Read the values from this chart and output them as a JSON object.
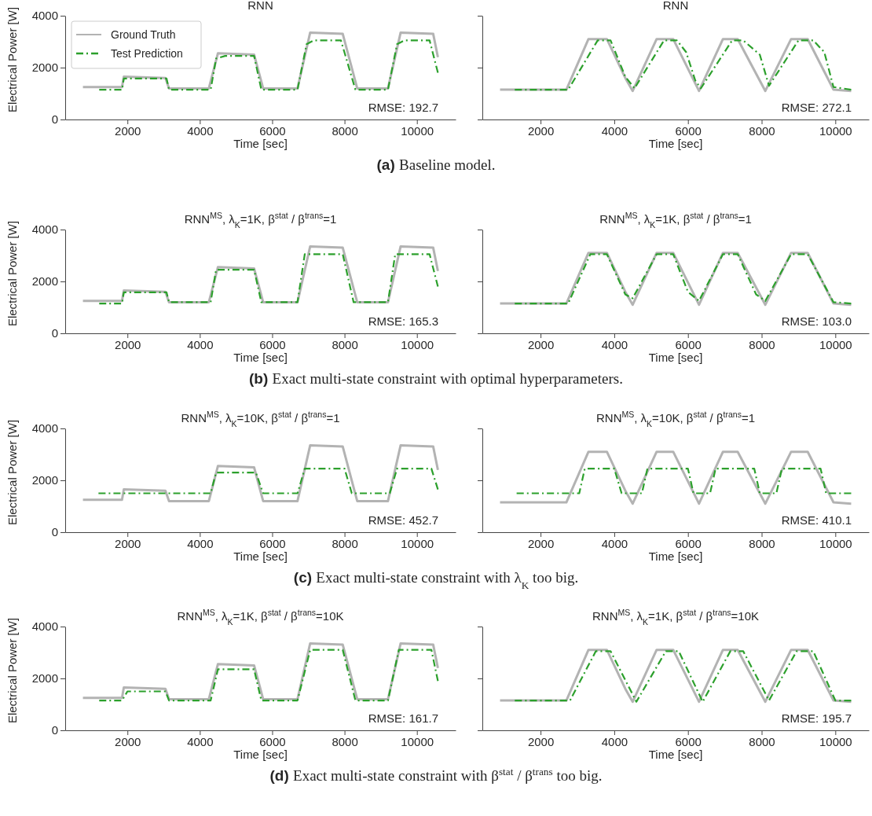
{
  "chart_data": [
    {
      "type": "line",
      "title": "RNN",
      "xlabel": "Time [sec]",
      "ylabel": "Electrical Power [W]",
      "xlim": [
        280,
        11070
      ],
      "ylim": [
        0,
        4000
      ],
      "xticks": [
        2000,
        4000,
        6000,
        8000,
        10000
      ],
      "yticks": [
        0,
        2000,
        4000
      ],
      "legend": "top left",
      "annotations": [
        "RMSE: 192.7",
        "(a) Baseline model."
      ],
      "series": [
        {
          "name": "Ground Truth",
          "color": "#b3b3b3",
          "line_style": "solid",
          "x": [
            770,
            1850,
            1900,
            3050,
            3150,
            4250,
            4500,
            5500,
            5750,
            6700,
            7050,
            7950,
            8350,
            9200,
            9550,
            10450,
            10580
          ],
          "values": [
            1250,
            1250,
            1650,
            1600,
            1200,
            1200,
            2550,
            2500,
            1200,
            1200,
            3350,
            3300,
            1200,
            1200,
            3350,
            3300,
            2400
          ]
        },
        {
          "name": "Test Prediction",
          "color": "#2ca02c",
          "line_style": "dashdot",
          "x": [
            1220,
            1850,
            1900,
            3080,
            3150,
            4300,
            4450,
            4700,
            5500,
            5700,
            6700,
            6950,
            7150,
            7900,
            8300,
            9200,
            9450,
            9650,
            10350,
            10580
          ],
          "values": [
            1150,
            1150,
            1580,
            1580,
            1150,
            1150,
            2350,
            2450,
            2450,
            1150,
            1150,
            2900,
            3050,
            3050,
            1150,
            1150,
            2900,
            3050,
            3050,
            1800
          ]
        }
      ]
    },
    {
      "type": "line",
      "title": "RNN",
      "xlabel": "Time [sec]",
      "xlim": [
        420,
        10910
      ],
      "ylim": [
        0,
        4000
      ],
      "xticks": [
        2000,
        4000,
        6000,
        8000,
        10000
      ],
      "yticks": [
        0,
        2000,
        4000
      ],
      "tick_labels": "x",
      "annotations": [
        "RMSE: 272.1"
      ],
      "series": [
        {
          "color": "#b3b3b3",
          "line_style": "solid",
          "x": [
            900,
            2700,
            3300,
            3800,
            4300,
            4500,
            5150,
            5600,
            6300,
            6950,
            7350,
            8100,
            8800,
            9250,
            9950,
            10430
          ],
          "values": [
            1150,
            1150,
            3100,
            3100,
            1600,
            1100,
            3100,
            3100,
            1100,
            3100,
            3100,
            1100,
            3100,
            3100,
            1150,
            1100
          ]
        },
        {
          "color": "#2ca02c",
          "line_style": "dashdot",
          "x": [
            1300,
            2750,
            3550,
            3900,
            4300,
            4550,
            5350,
            5700,
            5950,
            6200,
            6350,
            7200,
            7500,
            7950,
            8200,
            9000,
            9400,
            9700,
            9950,
            10430
          ],
          "values": [
            1150,
            1150,
            3050,
            3050,
            1650,
            1200,
            3050,
            3050,
            2600,
            1500,
            1200,
            3050,
            3050,
            2500,
            1300,
            3050,
            3050,
            2600,
            1250,
            1150
          ]
        }
      ]
    },
    {
      "type": "line",
      "title": "RNN$^{MS}$, λ$_{K}$=1K,  β$^{stat}$ / β$^{trans}$=1",
      "xlabel": "Time [sec]",
      "ylabel": "Electrical Power [W]",
      "xlim": [
        280,
        11070
      ],
      "ylim": [
        0,
        4000
      ],
      "xticks": [
        2000,
        4000,
        6000,
        8000,
        10000
      ],
      "yticks": [
        0,
        2000,
        4000
      ],
      "annotations": [
        "RMSE: 165.3",
        "(b) Exact multi-state constraint with optimal hyperparameters."
      ],
      "series": [
        {
          "color": "#b3b3b3",
          "line_style": "solid",
          "x": [
            770,
            1850,
            1900,
            3050,
            3150,
            4250,
            4500,
            5500,
            5750,
            6700,
            7050,
            7950,
            8350,
            9200,
            9550,
            10450,
            10580
          ],
          "values": [
            1250,
            1250,
            1650,
            1600,
            1200,
            1200,
            2550,
            2500,
            1200,
            1200,
            3350,
            3300,
            1200,
            1200,
            3350,
            3300,
            2400
          ]
        },
        {
          "color": "#2ca02c",
          "line_style": "dashdot",
          "x": [
            1220,
            1850,
            1900,
            3080,
            3150,
            4300,
            4450,
            5500,
            5700,
            6700,
            6900,
            7950,
            8250,
            9200,
            9400,
            10350,
            10580
          ],
          "values": [
            1150,
            1150,
            1580,
            1580,
            1200,
            1200,
            2450,
            2450,
            1200,
            1200,
            3050,
            3050,
            1200,
            1200,
            3050,
            3050,
            1800
          ]
        }
      ]
    },
    {
      "type": "line",
      "title": "RNN$^{MS}$, λ$_{K}$=1K,  β$^{stat}$ / β$^{trans}$=1",
      "xlabel": "Time [sec]",
      "xlim": [
        420,
        10910
      ],
      "ylim": [
        0,
        4000
      ],
      "xticks": [
        2000,
        4000,
        6000,
        8000,
        10000
      ],
      "yticks": [
        0,
        2000,
        4000
      ],
      "tick_labels": "x",
      "annotations": [
        "RMSE: 103.0"
      ],
      "series": [
        {
          "color": "#b3b3b3",
          "line_style": "solid",
          "x": [
            900,
            2700,
            3300,
            3800,
            4300,
            4500,
            5150,
            5600,
            6300,
            6950,
            7350,
            8100,
            8800,
            9250,
            9950,
            10430
          ],
          "values": [
            1150,
            1150,
            3100,
            3100,
            1600,
            1100,
            3100,
            3100,
            1100,
            3100,
            3100,
            1100,
            3100,
            3100,
            1150,
            1100
          ]
        },
        {
          "color": "#2ca02c",
          "line_style": "dashdot",
          "x": [
            1300,
            2750,
            3350,
            3800,
            4300,
            4500,
            5150,
            5600,
            6000,
            6300,
            6950,
            7350,
            7850,
            8100,
            8800,
            9250,
            9950,
            10430
          ],
          "values": [
            1150,
            1150,
            3050,
            3050,
            1500,
            1350,
            3050,
            3050,
            1600,
            1250,
            3050,
            3050,
            1500,
            1250,
            3050,
            3050,
            1200,
            1150
          ]
        }
      ]
    },
    {
      "type": "line",
      "title": "RNN$^{MS}$, λ$_{K}$=10K,  β$^{stat}$ / β$^{trans}$=1",
      "xlabel": "Time [sec]",
      "ylabel": "Electrical Power [W]",
      "xlim": [
        280,
        11070
      ],
      "ylim": [
        0,
        4000
      ],
      "xticks": [
        2000,
        4000,
        6000,
        8000,
        10000
      ],
      "yticks": [
        0,
        2000,
        4000
      ],
      "annotations": [
        "RMSE: 452.7",
        "(c) Exact multi-state constraint with λ$_{K}$ too big."
      ],
      "series": [
        {
          "color": "#b3b3b3",
          "line_style": "solid",
          "x": [
            770,
            1850,
            1900,
            3050,
            3150,
            4250,
            4500,
            5500,
            5750,
            6700,
            7050,
            7950,
            8350,
            9200,
            9550,
            10450,
            10580
          ],
          "values": [
            1250,
            1250,
            1650,
            1600,
            1200,
            1200,
            2550,
            2500,
            1200,
            1200,
            3350,
            3300,
            1200,
            1200,
            3350,
            3300,
            2400
          ]
        },
        {
          "color": "#2ca02c",
          "line_style": "dashdot",
          "x": [
            1200,
            4300,
            4450,
            5550,
            5750,
            6700,
            6900,
            8000,
            8200,
            9250,
            9450,
            10400,
            10580
          ],
          "values": [
            1500,
            1500,
            2300,
            2300,
            1500,
            1500,
            2450,
            2450,
            1500,
            1500,
            2450,
            2450,
            1650
          ]
        }
      ]
    },
    {
      "type": "line",
      "title": "RNN$^{MS}$, λ$_{K}$=10K,  β$^{stat}$ / β$^{trans}$=1",
      "xlabel": "Time [sec]",
      "xlim": [
        420,
        10910
      ],
      "ylim": [
        0,
        4000
      ],
      "xticks": [
        2000,
        4000,
        6000,
        8000,
        10000
      ],
      "yticks": [
        0,
        2000,
        4000
      ],
      "tick_labels": "x",
      "annotations": [
        "RMSE: 410.1"
      ],
      "series": [
        {
          "color": "#b3b3b3",
          "line_style": "solid",
          "x": [
            900,
            2700,
            3300,
            3800,
            4300,
            4500,
            5150,
            5600,
            6300,
            6950,
            7350,
            8100,
            8800,
            9250,
            9950,
            10430
          ],
          "values": [
            1150,
            1150,
            3100,
            3100,
            1600,
            1100,
            3100,
            3100,
            1100,
            3100,
            3100,
            1100,
            3100,
            3100,
            1150,
            1100
          ]
        },
        {
          "color": "#2ca02c",
          "line_style": "dashdot",
          "x": [
            1350,
            3050,
            3200,
            4000,
            4200,
            4750,
            4900,
            6000,
            6150,
            6600,
            6750,
            7800,
            7950,
            8400,
            8550,
            9600,
            9750,
            10430
          ],
          "values": [
            1500,
            1500,
            2450,
            2450,
            1500,
            1500,
            2450,
            2450,
            1500,
            1500,
            2450,
            2450,
            1500,
            1500,
            2450,
            2450,
            1500,
            1500
          ]
        }
      ]
    },
    {
      "type": "line",
      "title": "RNN$^{MS}$, λ$_{K}$=1K,  β$^{stat}$ / β$^{trans}$=10K",
      "xlabel": "Time [sec]",
      "ylabel": "Electrical Power [W]",
      "xlim": [
        280,
        11070
      ],
      "ylim": [
        0,
        4000
      ],
      "xticks": [
        2000,
        4000,
        6000,
        8000,
        10000
      ],
      "yticks": [
        0,
        2000,
        4000
      ],
      "annotations": [
        "RMSE: 161.7",
        "(d) Exact multi-state constraint with β$^{stat}$ / β$^{trans}$ too big."
      ],
      "series": [
        {
          "color": "#b3b3b3",
          "line_style": "solid",
          "x": [
            770,
            1850,
            1900,
            3050,
            3150,
            4250,
            4500,
            5500,
            5750,
            6700,
            7050,
            7950,
            8350,
            9200,
            9550,
            10450,
            10580
          ],
          "values": [
            1250,
            1250,
            1650,
            1600,
            1200,
            1200,
            2550,
            2500,
            1200,
            1200,
            3350,
            3300,
            1200,
            1200,
            3350,
            3300,
            2400
          ]
        },
        {
          "color": "#2ca02c",
          "line_style": "dashdot",
          "x": [
            1220,
            1850,
            2000,
            3050,
            3150,
            4300,
            4500,
            5500,
            5700,
            6700,
            7050,
            7950,
            8300,
            9200,
            9500,
            10400,
            10580
          ],
          "values": [
            1150,
            1150,
            1500,
            1500,
            1150,
            1150,
            2350,
            2350,
            1150,
            1150,
            3100,
            3100,
            1150,
            1150,
            3100,
            3100,
            1900
          ]
        }
      ]
    },
    {
      "type": "line",
      "title": "RNN$^{MS}$, λ$_{K}$=1K,  β$^{stat}$ / β$^{trans}$=10K",
      "xlabel": "Time [sec]",
      "xlim": [
        420,
        10910
      ],
      "ylim": [
        0,
        4000
      ],
      "xticks": [
        2000,
        4000,
        6000,
        8000,
        10000
      ],
      "yticks": [
        0,
        2000,
        4000
      ],
      "tick_labels": "x",
      "annotations": [
        "RMSE: 195.7"
      ],
      "series": [
        {
          "color": "#b3b3b3",
          "line_style": "solid",
          "x": [
            900,
            2700,
            3300,
            3800,
            4300,
            4500,
            5150,
            5600,
            6300,
            6950,
            7350,
            8100,
            8800,
            9250,
            9950,
            10430
          ],
          "values": [
            1150,
            1150,
            3100,
            3100,
            1600,
            1100,
            3100,
            3100,
            1100,
            3100,
            3100,
            1100,
            3100,
            3100,
            1150,
            1100
          ]
        },
        {
          "color": "#2ca02c",
          "line_style": "dashdot",
          "x": [
            1300,
            2800,
            3500,
            3900,
            4600,
            5400,
            5750,
            6400,
            7150,
            7500,
            8200,
            8950,
            9400,
            10000,
            10430
          ],
          "values": [
            1150,
            1150,
            3050,
            3050,
            1100,
            3050,
            3050,
            1100,
            3050,
            3050,
            1150,
            3050,
            3050,
            1150,
            1150
          ]
        }
      ]
    }
  ]
}
